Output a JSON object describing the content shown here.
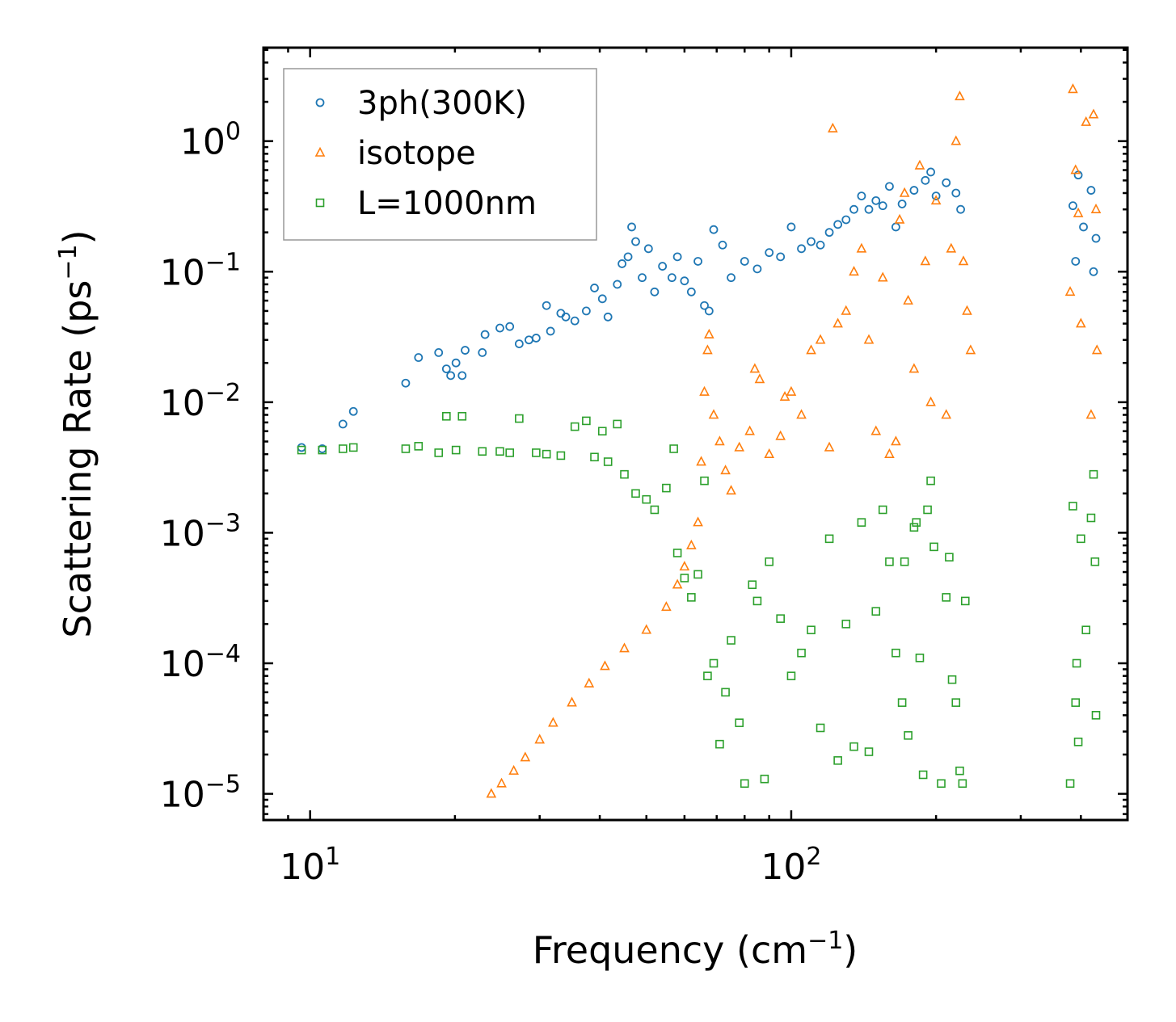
{
  "chart_data": {
    "type": "scatter",
    "xlabel": "Frequency (cm",
    "xlabel_sup": "−1",
    "xlabel_close": ")",
    "ylabel": "Scattering Rate (ps",
    "ylabel_sup": "−1",
    "ylabel_close": ")",
    "x_scale": "log",
    "y_scale": "log",
    "xlim": [
      8,
      500
    ],
    "ylim": [
      6.3e-06,
      5.2
    ],
    "x_ticks": [
      {
        "value": 10,
        "base": "10",
        "exp": "1"
      },
      {
        "value": 100,
        "base": "10",
        "exp": "2"
      }
    ],
    "y_ticks": [
      {
        "value": 1,
        "base": "10",
        "exp": "0"
      },
      {
        "value": 0.1,
        "base": "10",
        "exp": "−1"
      },
      {
        "value": 0.01,
        "base": "10",
        "exp": "−2"
      },
      {
        "value": 0.001,
        "base": "10",
        "exp": "−3"
      },
      {
        "value": 0.0001,
        "base": "10",
        "exp": "−4"
      },
      {
        "value": 1e-05,
        "base": "10",
        "exp": "−5"
      }
    ],
    "legend_position": "top-left",
    "series": [
      {
        "name": "3ph(300K)",
        "marker": "circle",
        "color": "#1f77b4",
        "points": [
          [
            9.6,
            0.0045
          ],
          [
            10.6,
            0.0044
          ],
          [
            11.7,
            0.0068
          ],
          [
            12.3,
            0.0085
          ],
          [
            15.8,
            0.014
          ],
          [
            16.8,
            0.022
          ],
          [
            18.5,
            0.024
          ],
          [
            19.2,
            0.018
          ],
          [
            19.6,
            0.016
          ],
          [
            20.1,
            0.02
          ],
          [
            20.7,
            0.016
          ],
          [
            21.0,
            0.025
          ],
          [
            22.8,
            0.024
          ],
          [
            23.1,
            0.033
          ],
          [
            24.8,
            0.037
          ],
          [
            26.0,
            0.038
          ],
          [
            27.2,
            0.028
          ],
          [
            28.5,
            0.03
          ],
          [
            29.5,
            0.031
          ],
          [
            31.0,
            0.055
          ],
          [
            31.6,
            0.035
          ],
          [
            33.2,
            0.048
          ],
          [
            34.0,
            0.045
          ],
          [
            35.5,
            0.042
          ],
          [
            37.5,
            0.05
          ],
          [
            39.0,
            0.075
          ],
          [
            40.5,
            0.062
          ],
          [
            41.6,
            0.045
          ],
          [
            43.5,
            0.08
          ],
          [
            44.5,
            0.115
          ],
          [
            45.8,
            0.13
          ],
          [
            46.6,
            0.22
          ],
          [
            47.5,
            0.17
          ],
          [
            49.0,
            0.09
          ],
          [
            50.5,
            0.15
          ],
          [
            52.0,
            0.07
          ],
          [
            54.0,
            0.11
          ],
          [
            56.5,
            0.09
          ],
          [
            58.0,
            0.13
          ],
          [
            60.0,
            0.085
          ],
          [
            62.0,
            0.07
          ],
          [
            64.0,
            0.12
          ],
          [
            66.0,
            0.055
          ],
          [
            67.5,
            0.05
          ],
          [
            69.0,
            0.21
          ],
          [
            72.0,
            0.16
          ],
          [
            75.0,
            0.09
          ],
          [
            80.0,
            0.12
          ],
          [
            85.0,
            0.105
          ],
          [
            90.0,
            0.14
          ],
          [
            95.0,
            0.13
          ],
          [
            100.0,
            0.22
          ],
          [
            105.0,
            0.15
          ],
          [
            110.0,
            0.17
          ],
          [
            115.0,
            0.16
          ],
          [
            120.0,
            0.2
          ],
          [
            125.0,
            0.23
          ],
          [
            130.0,
            0.25
          ],
          [
            135.0,
            0.3
          ],
          [
            140.0,
            0.38
          ],
          [
            145.0,
            0.3
          ],
          [
            150.0,
            0.35
          ],
          [
            155.0,
            0.32
          ],
          [
            160.0,
            0.45
          ],
          [
            165.0,
            0.22
          ],
          [
            170.0,
            0.33
          ],
          [
            180.0,
            0.42
          ],
          [
            190.0,
            0.5
          ],
          [
            195.0,
            0.58
          ],
          [
            200.0,
            0.38
          ],
          [
            210.0,
            0.48
          ],
          [
            220.0,
            0.4
          ],
          [
            225.0,
            0.3
          ],
          [
            385.0,
            0.32
          ],
          [
            390.0,
            0.12
          ],
          [
            395.0,
            0.55
          ],
          [
            405.0,
            0.22
          ],
          [
            420.0,
            0.42
          ],
          [
            425.0,
            0.1
          ],
          [
            430.0,
            0.18
          ]
        ]
      },
      {
        "name": "isotope",
        "marker": "triangle",
        "color": "#ff7f0e",
        "points": [
          [
            23.8,
            1e-05
          ],
          [
            25.0,
            1.2e-05
          ],
          [
            26.5,
            1.5e-05
          ],
          [
            28.0,
            1.9e-05
          ],
          [
            30.0,
            2.6e-05
          ],
          [
            32.0,
            3.5e-05
          ],
          [
            35.0,
            5e-05
          ],
          [
            38.0,
            7e-05
          ],
          [
            41.0,
            9.5e-05
          ],
          [
            45.0,
            0.00013
          ],
          [
            50.0,
            0.00018
          ],
          [
            55.0,
            0.00027
          ],
          [
            58.0,
            0.0004
          ],
          [
            60.0,
            0.00055
          ],
          [
            62.0,
            0.0008
          ],
          [
            64.0,
            0.0012
          ],
          [
            65.0,
            0.0035
          ],
          [
            66.0,
            0.012
          ],
          [
            67.0,
            0.025
          ],
          [
            67.5,
            0.033
          ],
          [
            69.0,
            0.008
          ],
          [
            71.0,
            0.005
          ],
          [
            73.0,
            0.003
          ],
          [
            75.0,
            0.0021
          ],
          [
            78.0,
            0.0045
          ],
          [
            82.0,
            0.006
          ],
          [
            84.0,
            0.018
          ],
          [
            86.0,
            0.015
          ],
          [
            90.0,
            0.004
          ],
          [
            95.0,
            0.0055
          ],
          [
            97.0,
            0.011
          ],
          [
            100.0,
            0.012
          ],
          [
            105.0,
            0.008
          ],
          [
            110.0,
            0.025
          ],
          [
            115.0,
            0.03
          ],
          [
            120.0,
            0.0045
          ],
          [
            122.0,
            1.25
          ],
          [
            125.0,
            0.04
          ],
          [
            130.0,
            0.05
          ],
          [
            135.0,
            0.1
          ],
          [
            140.0,
            0.15
          ],
          [
            145.0,
            0.03
          ],
          [
            150.0,
            0.006
          ],
          [
            155.0,
            0.09
          ],
          [
            160.0,
            0.004
          ],
          [
            165.0,
            0.005
          ],
          [
            168.0,
            0.25
          ],
          [
            172.0,
            0.4
          ],
          [
            175.0,
            0.06
          ],
          [
            180.0,
            0.018
          ],
          [
            185.0,
            0.65
          ],
          [
            190.0,
            0.12
          ],
          [
            195.0,
            0.01
          ],
          [
            200.0,
            0.35
          ],
          [
            210.0,
            0.008
          ],
          [
            215.0,
            0.15
          ],
          [
            220.0,
            1.0
          ],
          [
            224.0,
            2.2
          ],
          [
            228.0,
            0.12
          ],
          [
            232.0,
            0.05
          ],
          [
            236.0,
            0.025
          ],
          [
            380.0,
            0.07
          ],
          [
            385.0,
            2.5
          ],
          [
            390.0,
            0.6
          ],
          [
            395.0,
            0.28
          ],
          [
            400.0,
            0.04
          ],
          [
            410.0,
            1.4
          ],
          [
            420.0,
            0.008
          ],
          [
            425.0,
            1.6
          ],
          [
            430.0,
            0.3
          ],
          [
            432.0,
            0.025
          ]
        ]
      },
      {
        "name": "L=1000nm",
        "marker": "square",
        "color": "#2ca02c",
        "points": [
          [
            9.6,
            0.0043
          ],
          [
            10.6,
            0.0043
          ],
          [
            11.7,
            0.0044
          ],
          [
            12.3,
            0.0045
          ],
          [
            15.8,
            0.0044
          ],
          [
            16.8,
            0.0046
          ],
          [
            18.5,
            0.0041
          ],
          [
            19.2,
            0.0078
          ],
          [
            20.1,
            0.0043
          ],
          [
            20.7,
            0.0078
          ],
          [
            22.8,
            0.0042
          ],
          [
            24.8,
            0.0042
          ],
          [
            26.0,
            0.0041
          ],
          [
            27.2,
            0.0075
          ],
          [
            29.5,
            0.0041
          ],
          [
            31.0,
            0.004
          ],
          [
            33.2,
            0.0039
          ],
          [
            35.5,
            0.0065
          ],
          [
            37.5,
            0.0072
          ],
          [
            39.0,
            0.0038
          ],
          [
            40.5,
            0.006
          ],
          [
            41.6,
            0.0035
          ],
          [
            43.5,
            0.0068
          ],
          [
            45.0,
            0.0028
          ],
          [
            47.5,
            0.002
          ],
          [
            50.0,
            0.0018
          ],
          [
            52.0,
            0.0015
          ],
          [
            55.0,
            0.0022
          ],
          [
            57.0,
            0.0044
          ],
          [
            58.0,
            0.0007
          ],
          [
            60.0,
            0.00045
          ],
          [
            62.0,
            0.00032
          ],
          [
            64.0,
            0.00048
          ],
          [
            66.0,
            0.0025
          ],
          [
            67.0,
            8e-05
          ],
          [
            69.0,
            0.0001
          ],
          [
            71.0,
            2.4e-05
          ],
          [
            73.0,
            6e-05
          ],
          [
            75.0,
            0.00015
          ],
          [
            78.0,
            3.5e-05
          ],
          [
            80.0,
            1.2e-05
          ],
          [
            83.0,
            0.0004
          ],
          [
            85.0,
            0.0003
          ],
          [
            88.0,
            1.3e-05
          ],
          [
            90.0,
            0.0006
          ],
          [
            95.0,
            0.00022
          ],
          [
            100.0,
            8e-05
          ],
          [
            105.0,
            0.00012
          ],
          [
            110.0,
            0.00018
          ],
          [
            115.0,
            3.2e-05
          ],
          [
            120.0,
            0.0009
          ],
          [
            125.0,
            1.8e-05
          ],
          [
            130.0,
            0.0002
          ],
          [
            135.0,
            2.3e-05
          ],
          [
            140.0,
            0.0012
          ],
          [
            145.0,
            2.1e-05
          ],
          [
            150.0,
            0.00025
          ],
          [
            155.0,
            0.0015
          ],
          [
            160.0,
            0.0006
          ],
          [
            165.0,
            0.00012
          ],
          [
            170.0,
            5e-05
          ],
          [
            172.0,
            0.0006
          ],
          [
            175.0,
            2.8e-05
          ],
          [
            180.0,
            0.0011
          ],
          [
            182.0,
            0.0012
          ],
          [
            185.0,
            0.00011
          ],
          [
            188.0,
            1.4e-05
          ],
          [
            192.0,
            0.0015
          ],
          [
            195.0,
            0.0025
          ],
          [
            198.0,
            0.00078
          ],
          [
            205.0,
            1.2e-05
          ],
          [
            210.0,
            0.00032
          ],
          [
            213.0,
            0.00065
          ],
          [
            216.0,
            7.5e-05
          ],
          [
            220.0,
            5e-05
          ],
          [
            224.0,
            1.5e-05
          ],
          [
            227.0,
            1.2e-05
          ],
          [
            230.0,
            0.0003
          ],
          [
            380.0,
            1.2e-05
          ],
          [
            385.0,
            0.0016
          ],
          [
            390.0,
            5e-05
          ],
          [
            392.0,
            0.0001
          ],
          [
            395.0,
            2.5e-05
          ],
          [
            400.0,
            0.0009
          ],
          [
            410.0,
            0.00018
          ],
          [
            420.0,
            0.0013
          ],
          [
            425.0,
            0.0028
          ],
          [
            428.0,
            0.0006
          ],
          [
            430.0,
            4e-05
          ]
        ]
      }
    ]
  }
}
